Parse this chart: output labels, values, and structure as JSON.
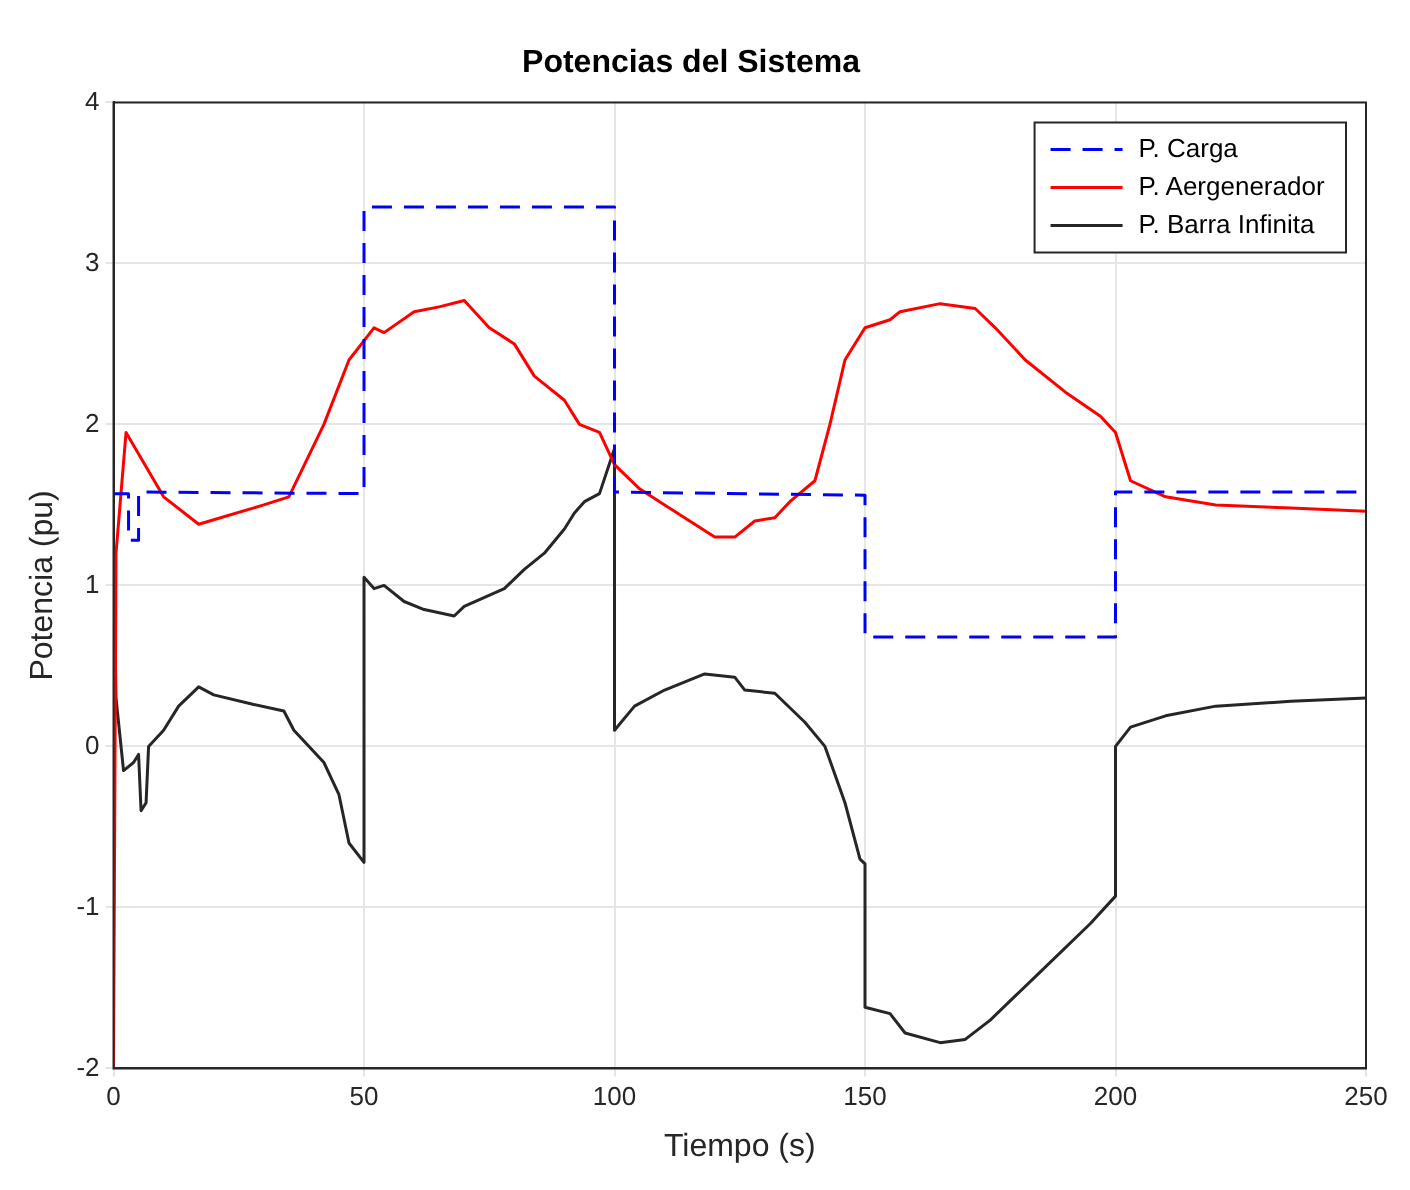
{
  "chart_data": {
    "type": "line",
    "title": "Potencias del Sistema",
    "xlabel": "Tiempo (s)",
    "ylabel": "Potencia (pu)",
    "xlim": [
      0,
      250
    ],
    "xticks": [
      0,
      50,
      100,
      150,
      200,
      250
    ],
    "ylim": [
      -2,
      4
    ],
    "yticks": [
      -2,
      -1,
      0,
      1,
      2,
      3,
      4
    ],
    "grid": true,
    "legend": "top right",
    "marker": "none",
    "series": [
      {
        "name": "P. Carga",
        "color": "#0000ff",
        "line_style": "dashed",
        "x": [
          0,
          3,
          3,
          5,
          5,
          50,
          50,
          100,
          100,
          150,
          150,
          200,
          200,
          250
        ],
        "values": [
          1.57,
          1.57,
          1.28,
          1.28,
          1.58,
          1.57,
          3.35,
          3.35,
          1.58,
          1.56,
          0.68,
          0.68,
          1.58,
          1.58
        ]
      },
      {
        "name": "P. Aergenerador",
        "color": "#ff0000",
        "line_style": "solid",
        "x": [
          0,
          0.5,
          2.5,
          10,
          17,
          30,
          35,
          42,
          47,
          52,
          54,
          60,
          65,
          70,
          75,
          80,
          84,
          90,
          93,
          97,
          100,
          105,
          110,
          115,
          120,
          124,
          128,
          132,
          135,
          140,
          143,
          146,
          150,
          155,
          157,
          165,
          172,
          176,
          182,
          190,
          197,
          200,
          203,
          210,
          220,
          235,
          250
        ],
        "values": [
          -2,
          1.2,
          1.95,
          1.55,
          1.38,
          1.5,
          1.55,
          2,
          2.4,
          2.6,
          2.57,
          2.7,
          2.73,
          2.77,
          2.6,
          2.5,
          2.3,
          2.15,
          2,
          1.95,
          1.75,
          1.6,
          1.5,
          1.4,
          1.3,
          1.3,
          1.4,
          1.42,
          1.52,
          1.65,
          2,
          2.4,
          2.6,
          2.65,
          2.7,
          2.75,
          2.72,
          2.6,
          2.4,
          2.2,
          2.05,
          1.95,
          1.65,
          1.55,
          1.5,
          1.48,
          1.46
        ]
      },
      {
        "name": "P. Barra Infinita",
        "color": "#262626",
        "line_style": "solid",
        "x": [
          0,
          0.5,
          1,
          2,
          4,
          5,
          5.5,
          6.5,
          7,
          10,
          13,
          17,
          20,
          28,
          34,
          36,
          42,
          45,
          47,
          50,
          50,
          52,
          54,
          58,
          62,
          68,
          70,
          78,
          82,
          86,
          90,
          92,
          94,
          97,
          100,
          100,
          104,
          110,
          118,
          124,
          126,
          132,
          138,
          142,
          146,
          149,
          150,
          150,
          155,
          158,
          165,
          170,
          175,
          180,
          185,
          195,
          200,
          200,
          203,
          210,
          220,
          235,
          250
        ],
        "values": [
          1.2,
          0.3,
          0.15,
          -0.15,
          -0.1,
          -0.05,
          -0.4,
          -0.35,
          0,
          0.1,
          0.25,
          0.37,
          0.32,
          0.26,
          0.22,
          0.1,
          -0.1,
          -0.3,
          -0.6,
          -0.72,
          1.05,
          0.98,
          1,
          0.9,
          0.85,
          0.81,
          0.87,
          0.98,
          1.1,
          1.2,
          1.35,
          1.45,
          1.52,
          1.57,
          1.85,
          0.1,
          0.25,
          0.35,
          0.45,
          0.43,
          0.35,
          0.33,
          0.15,
          0,
          -0.35,
          -0.7,
          -0.73,
          -1.62,
          -1.66,
          -1.78,
          -1.84,
          -1.82,
          -1.7,
          -1.55,
          -1.4,
          -1.1,
          -0.93,
          0,
          0.12,
          0.19,
          0.25,
          0.28,
          0.3
        ]
      }
    ]
  }
}
